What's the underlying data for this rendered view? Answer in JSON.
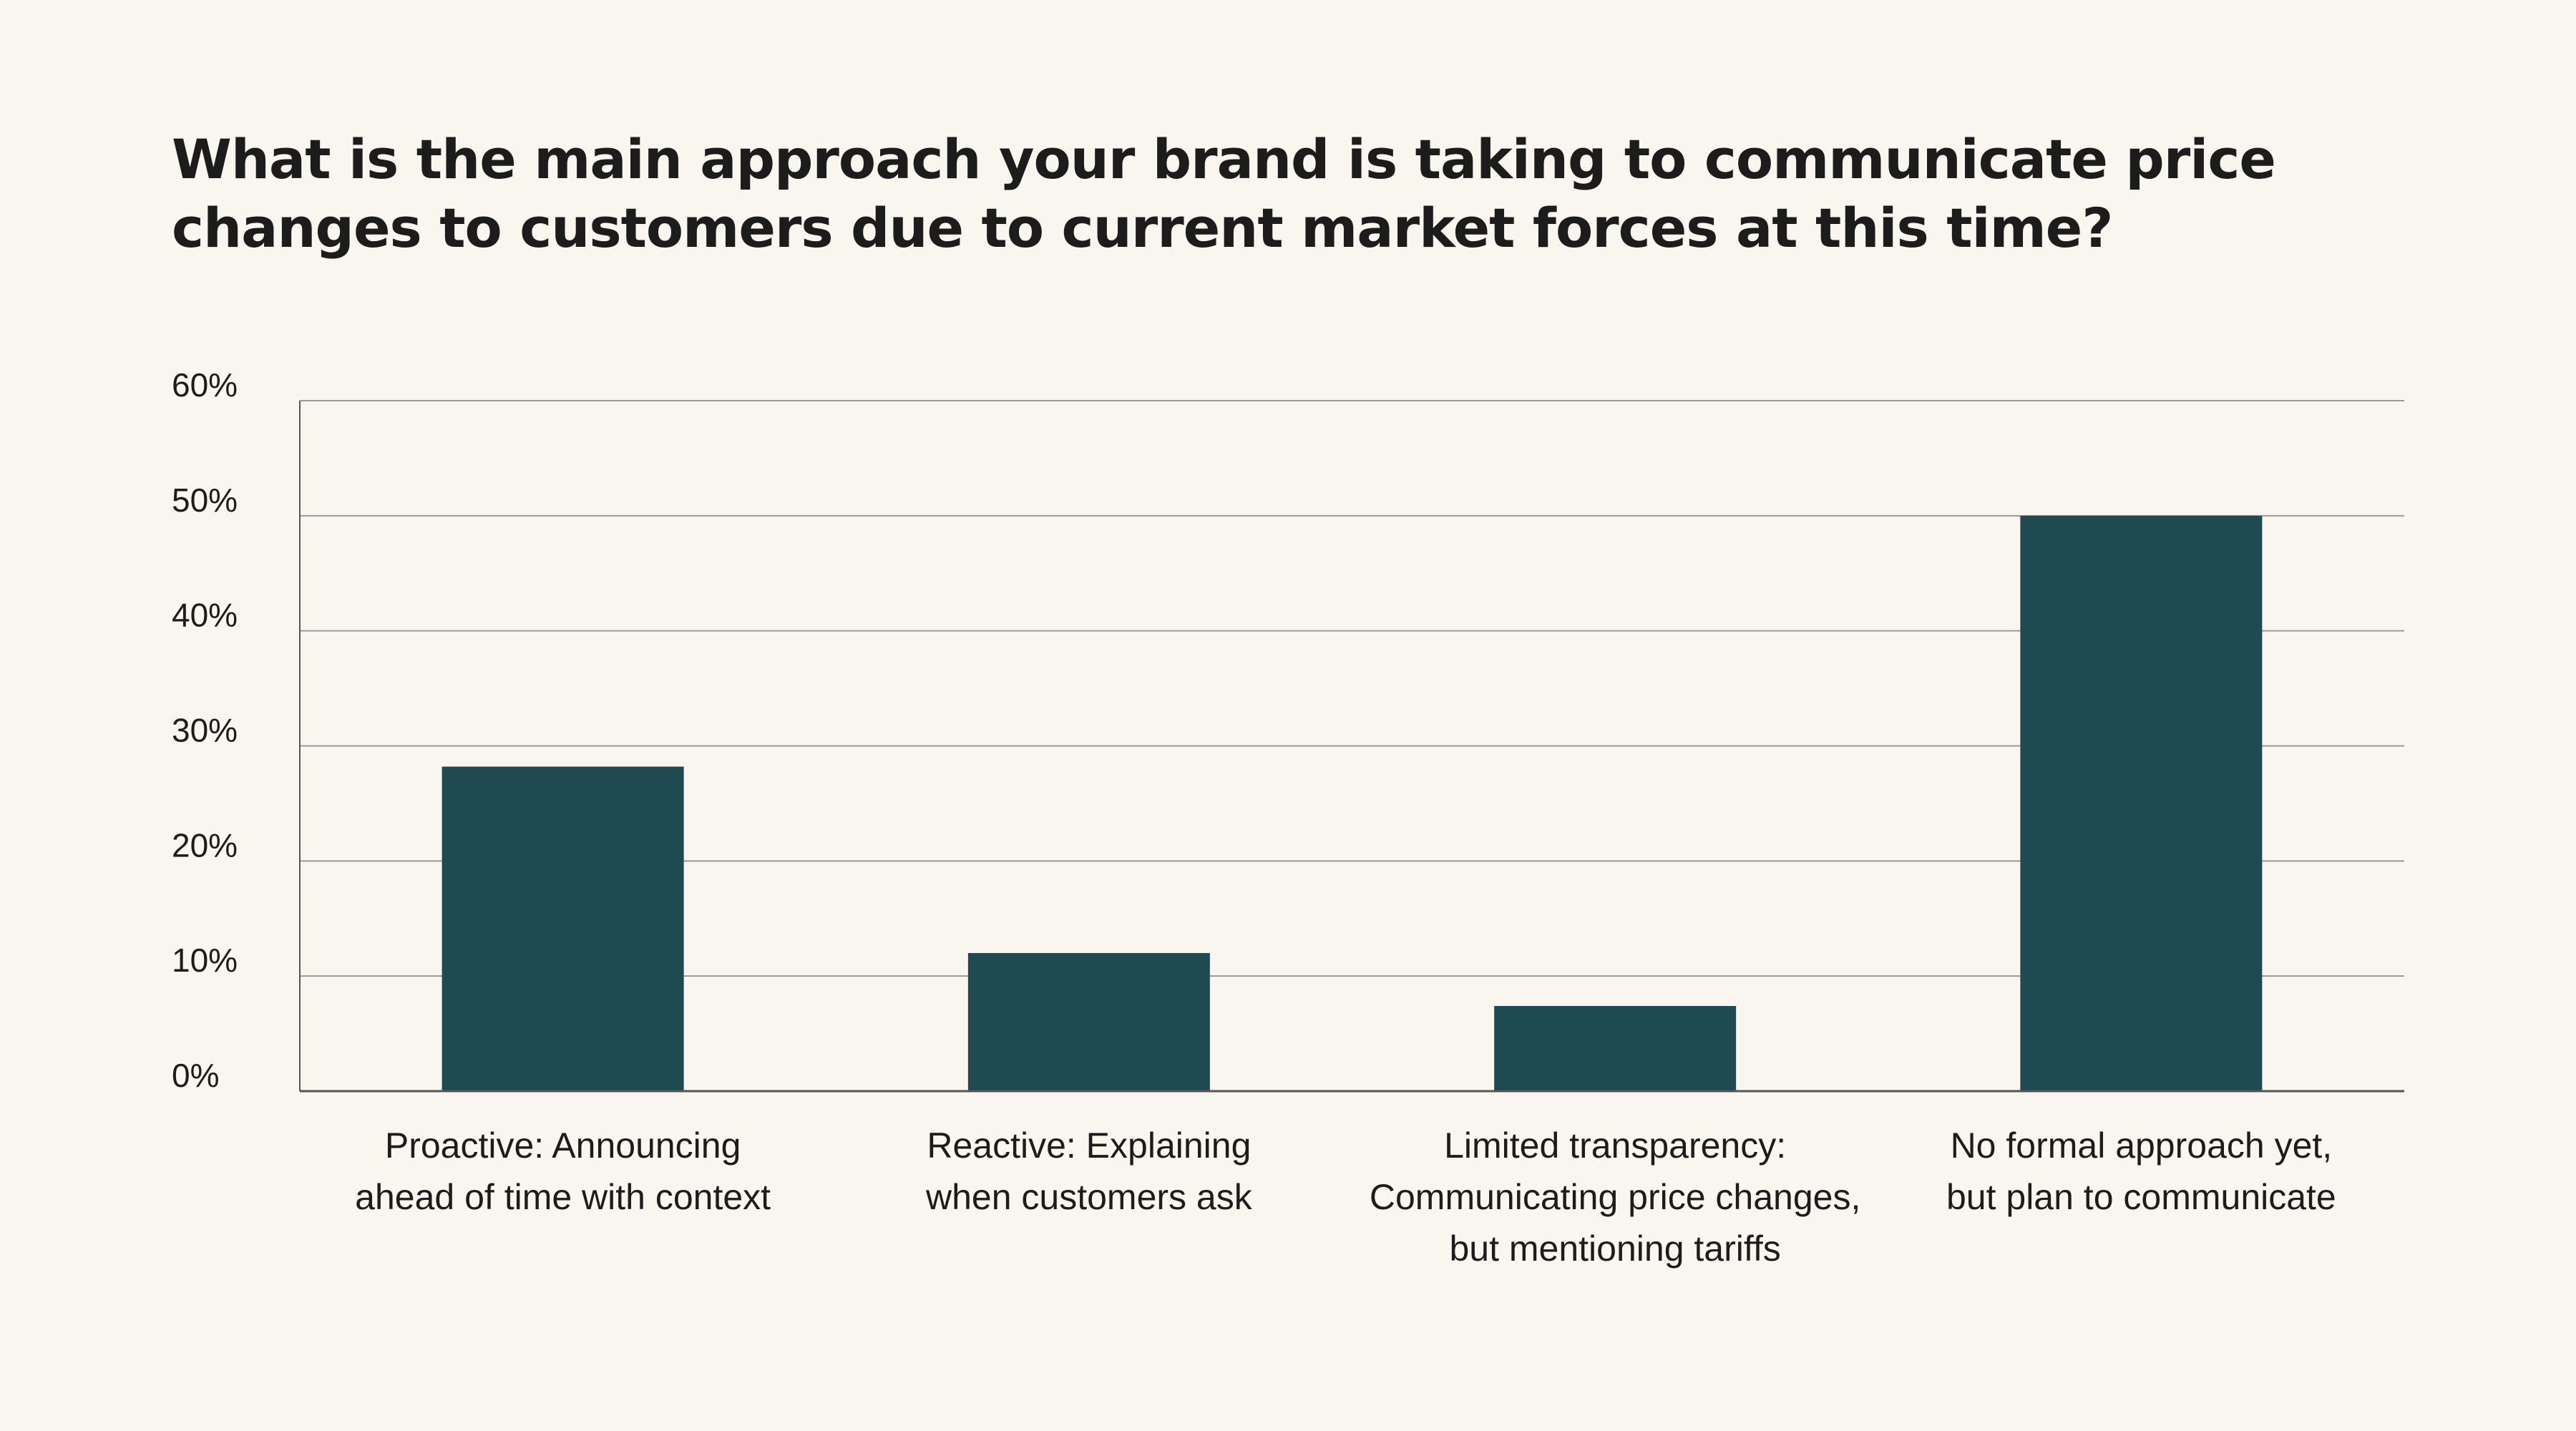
{
  "chart_data": {
    "type": "bar",
    "title_lines": [
      "What is the main approach your brand is taking to communicate price",
      "changes to customers due to current market forces at this time?"
    ],
    "categories": [
      [
        "Proactive: Announcing",
        "ahead of time with context"
      ],
      [
        "Reactive: Explaining",
        "when customers ask"
      ],
      [
        "Limited transparency:",
        "Communicating price changes,",
        "but mentioning tariffs"
      ],
      [
        "No formal approach yet,",
        "but plan to communicate"
      ]
    ],
    "values": [
      28.2,
      12.0,
      7.4,
      50.0
    ],
    "y_ticks": [
      "0%",
      "10%",
      "20%",
      "30%",
      "40%",
      "50%",
      "60%"
    ],
    "ylim": [
      0,
      60
    ],
    "grid": true,
    "bar_color": "#1f4a51",
    "grid_color": "#9a9a9a",
    "axis_color": "#555555"
  }
}
